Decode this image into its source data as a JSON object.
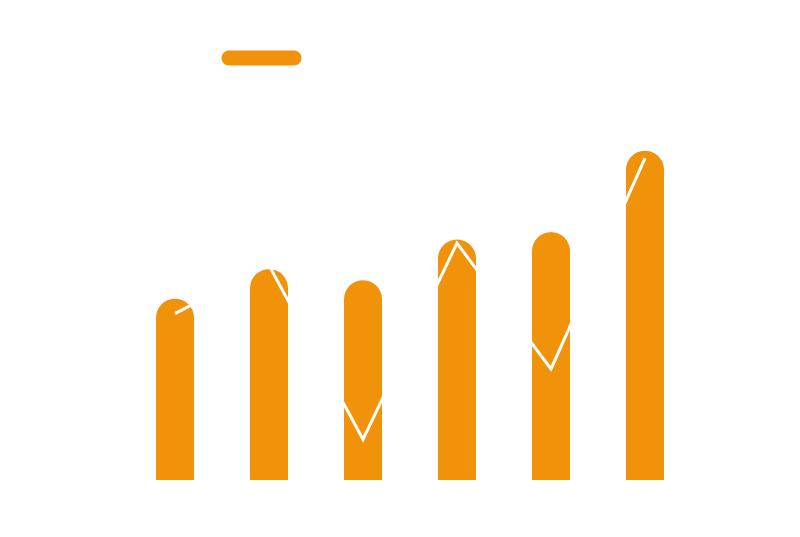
{
  "chart_data": {
    "type": "bar",
    "categories": [
      "",
      "",
      "",
      "",
      "",
      ""
    ],
    "ylim": [
      0,
      100
    ],
    "grid": false,
    "legend_position": "top-left",
    "series": [
      {
        "kind": "bar",
        "color": "#F0920A",
        "values": [
          49,
          57,
          54,
          65,
          67,
          89
        ]
      },
      {
        "kind": "line",
        "color": "#FFFFFF",
        "values": [
          45,
          58,
          11,
          64,
          30,
          87
        ]
      }
    ]
  }
}
